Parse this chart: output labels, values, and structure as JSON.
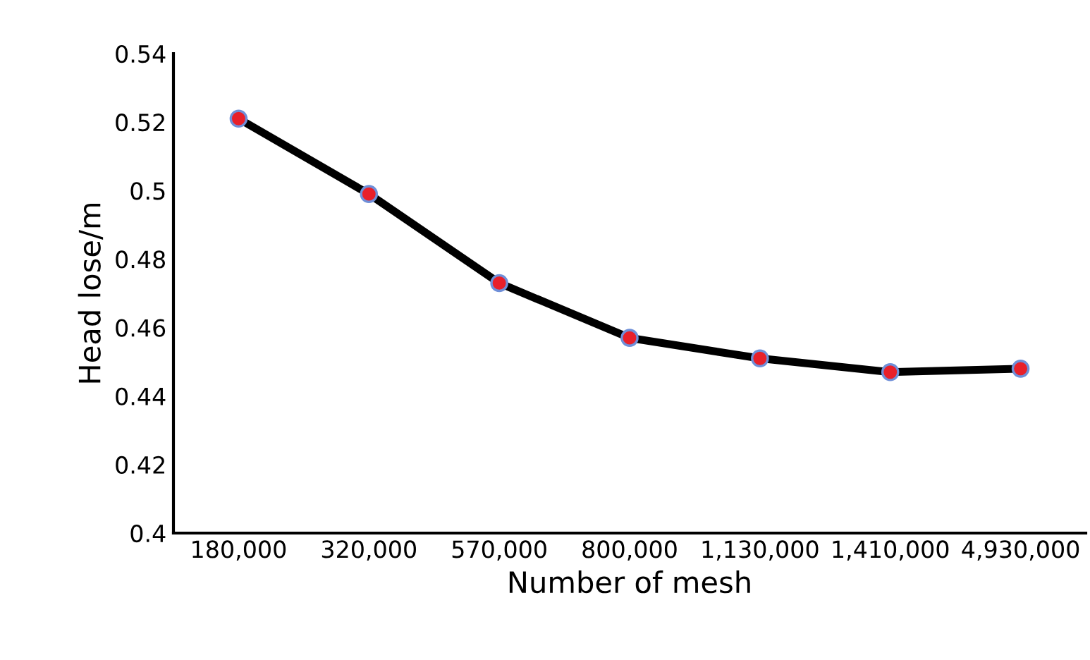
{
  "chart_data": {
    "type": "line",
    "xlabel": "Number of mesh",
    "ylabel": "Head lose/m",
    "categories": [
      "180,000",
      "320,000",
      "570,000",
      "800,000",
      "1,130,000",
      "1,410,000",
      "4,930,000"
    ],
    "series": [
      {
        "color": "#000000",
        "values": [
          0.521,
          0.499,
          0.473,
          0.457,
          0.451,
          0.447,
          0.448
        ]
      }
    ],
    "ylim": [
      0.4,
      0.54
    ],
    "yticks": [
      0.4,
      0.42,
      0.44,
      0.46,
      0.48,
      0.5,
      0.52,
      0.54
    ],
    "marker": "circle",
    "line_style": "solid",
    "grid": false,
    "legend": false
  }
}
